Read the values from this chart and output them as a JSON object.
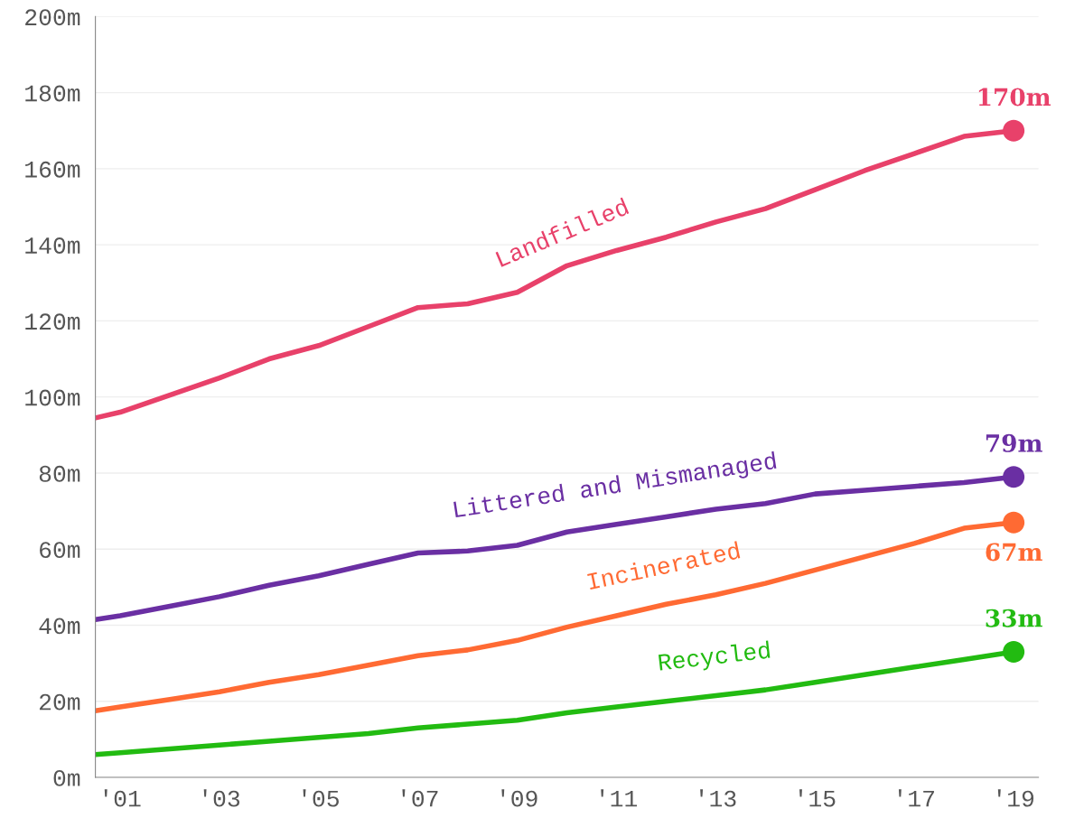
{
  "chart_data": {
    "type": "line",
    "x": [
      2000.5,
      2001,
      2002,
      2003,
      2004,
      2005,
      2006,
      2007,
      2008,
      2009,
      2010,
      2011,
      2012,
      2013,
      2014,
      2015,
      2016,
      2017,
      2018,
      2019
    ],
    "xlim": [
      2000.5,
      2019.5
    ],
    "xticks": [
      {
        "value": 2001,
        "label": "'01"
      },
      {
        "value": 2003,
        "label": "'03"
      },
      {
        "value": 2005,
        "label": "'05"
      },
      {
        "value": 2007,
        "label": "'07"
      },
      {
        "value": 2009,
        "label": "'09"
      },
      {
        "value": 2011,
        "label": "'11"
      },
      {
        "value": 2013,
        "label": "'13"
      },
      {
        "value": 2015,
        "label": "'15"
      },
      {
        "value": 2017,
        "label": "'17"
      },
      {
        "value": 2019,
        "label": "'19"
      }
    ],
    "ylim": [
      0,
      200
    ],
    "yticks": [
      {
        "value": 0,
        "label": "0m"
      },
      {
        "value": 20,
        "label": "20m"
      },
      {
        "value": 40,
        "label": "40m"
      },
      {
        "value": 60,
        "label": "60m"
      },
      {
        "value": 80,
        "label": "80m"
      },
      {
        "value": 100,
        "label": "100m"
      },
      {
        "value": 120,
        "label": "120m"
      },
      {
        "value": 140,
        "label": "140m"
      },
      {
        "value": 160,
        "label": "160m"
      },
      {
        "value": 180,
        "label": "180m"
      },
      {
        "value": 200,
        "label": "200m"
      }
    ],
    "grid": "y",
    "legend": false,
    "line_style": "solid",
    "series": [
      {
        "name": "Landfilled",
        "color": "#e8416a",
        "values": [
          94.5,
          96,
          100.5,
          105,
          110,
          113.5,
          118.5,
          123.5,
          124.5,
          127.5,
          134.5,
          138.5,
          142,
          146,
          149.5,
          154.5,
          159.5,
          164,
          168.5,
          170
        ]
      },
      {
        "name": "Littered and Mismanaged",
        "color": "#6a2fa3",
        "values": [
          41.5,
          42.5,
          45,
          47.5,
          50.5,
          53,
          56,
          59,
          59.5,
          61,
          64.5,
          66.5,
          68.5,
          70.5,
          72,
          74.5,
          75.5,
          76.5,
          77.5,
          79
        ]
      },
      {
        "name": "Incinerated",
        "color": "#ff6a33",
        "values": [
          17.5,
          18.5,
          20.5,
          22.5,
          25,
          27,
          29.5,
          32,
          33.5,
          36,
          39.5,
          42.5,
          45.5,
          48,
          51,
          54.5,
          58,
          61.5,
          65.5,
          67
        ]
      },
      {
        "name": "Recycled",
        "color": "#22bb11",
        "values": [
          6,
          6.5,
          7.5,
          8.5,
          9.5,
          10.5,
          11.5,
          13,
          14,
          15,
          17,
          18.5,
          20,
          21.5,
          23,
          25,
          27,
          29,
          31,
          33
        ]
      },
      {
        "type": "scatter",
        "marker": "circle",
        "color": "#e8416a",
        "values": [
          null,
          null,
          null,
          null,
          null,
          null,
          null,
          null,
          null,
          null,
          null,
          null,
          null,
          null,
          null,
          null,
          null,
          null,
          null,
          170
        ],
        "value_labels": [
          null,
          null,
          null,
          null,
          null,
          null,
          null,
          null,
          null,
          null,
          null,
          null,
          null,
          null,
          null,
          null,
          null,
          null,
          null,
          "170m"
        ]
      },
      {
        "type": "scatter",
        "marker": "circle",
        "color": "#6a2fa3",
        "values": [
          null,
          null,
          null,
          null,
          null,
          null,
          null,
          null,
          null,
          null,
          null,
          null,
          null,
          null,
          null,
          null,
          null,
          null,
          null,
          79
        ],
        "value_labels": [
          null,
          null,
          null,
          null,
          null,
          null,
          null,
          null,
          null,
          null,
          null,
          null,
          null,
          null,
          null,
          null,
          null,
          null,
          null,
          "79m"
        ]
      },
      {
        "type": "scatter",
        "marker": "circle",
        "color": "#ff6a33",
        "values": [
          null,
          null,
          null,
          null,
          null,
          null,
          null,
          null,
          null,
          null,
          null,
          null,
          null,
          null,
          null,
          null,
          null,
          null,
          null,
          67
        ],
        "value_labels": [
          null,
          null,
          null,
          null,
          null,
          null,
          null,
          null,
          null,
          null,
          null,
          null,
          null,
          null,
          null,
          null,
          null,
          null,
          null,
          "67m"
        ]
      },
      {
        "type": "scatter",
        "marker": "circle",
        "color": "#22bb11",
        "values": [
          null,
          null,
          null,
          null,
          null,
          null,
          null,
          null,
          null,
          null,
          null,
          null,
          null,
          null,
          null,
          null,
          null,
          null,
          null,
          33
        ],
        "value_labels": [
          null,
          null,
          null,
          null,
          null,
          null,
          null,
          null,
          null,
          null,
          null,
          null,
          null,
          null,
          null,
          null,
          null,
          null,
          null,
          "33m"
        ]
      }
    ]
  }
}
